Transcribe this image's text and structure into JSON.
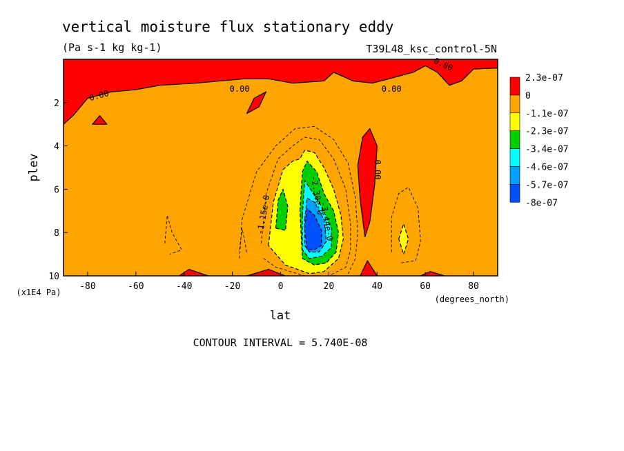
{
  "chart_data": {
    "type": "heatmap",
    "title": "vertical moisture flux stationary eddy",
    "subtitle": "(Pa s-1 kg kg-1)",
    "dataset_label": "T39L48_ksc_control-5N",
    "xlabel": "lat",
    "xunits": "(degrees_north)",
    "ylabel": "plev",
    "yunits": "(x1E4 Pa)",
    "xlim": [
      -90,
      90
    ],
    "ylim": [
      0,
      10
    ],
    "y_inverted": true,
    "xticks": [
      -80,
      -60,
      -40,
      -20,
      0,
      20,
      40,
      60,
      80
    ],
    "yticks": [
      2,
      4,
      6,
      8,
      10
    ],
    "footer": "CONTOUR INTERVAL = 5.740E-08",
    "colorbar": {
      "labels": [
        "2.3e-07",
        "0",
        "-1.1e-07",
        "-2.3e-07",
        "-3.4e-07",
        "-4.6e-07",
        "-5.7e-07",
        "-8e-07"
      ],
      "colors": [
        "#ff0000",
        "#ffa500",
        "#ffff00",
        "#00d000",
        "#00ffff",
        "#00a0ff",
        "#0050ff"
      ]
    },
    "background_color": "#ffa500",
    "regions": [
      {
        "level": "positive",
        "color": "#ff0000",
        "pts": [
          [
            -90,
            0
          ],
          [
            90,
            0
          ],
          [
            90,
            0.4
          ],
          [
            80,
            0.45
          ],
          [
            75,
            1.0
          ],
          [
            70,
            1.2
          ],
          [
            65,
            0.6
          ],
          [
            60,
            0.3
          ],
          [
            55,
            0.6
          ],
          [
            45,
            0.9
          ],
          [
            38,
            1.1
          ],
          [
            30,
            1.0
          ],
          [
            22,
            0.6
          ],
          [
            18,
            1.0
          ],
          [
            5,
            1.1
          ],
          [
            -5,
            0.9
          ],
          [
            -15,
            0.9
          ],
          [
            -25,
            1.0
          ],
          [
            -35,
            1.1
          ],
          [
            -50,
            1.2
          ],
          [
            -60,
            1.4
          ],
          [
            -70,
            1.5
          ],
          [
            -80,
            1.8
          ],
          [
            -86,
            2.6
          ],
          [
            -90,
            3.0
          ]
        ]
      },
      {
        "level": "positive",
        "color": "#ff0000",
        "pts": [
          [
            -14,
            2.5
          ],
          [
            -11,
            1.8
          ],
          [
            -6,
            1.5
          ],
          [
            -9,
            2.2
          ]
        ]
      },
      {
        "level": "positive",
        "color": "#ff0000",
        "pts": [
          [
            -78,
            3.0
          ],
          [
            -75,
            2.6
          ],
          [
            -72,
            3.0
          ]
        ]
      },
      {
        "level": "positive",
        "color": "#ff0000",
        "pts": [
          [
            32,
            4.9
          ],
          [
            34,
            3.6
          ],
          [
            37,
            3.2
          ],
          [
            40,
            4.0
          ],
          [
            39,
            5.8
          ],
          [
            37,
            7.5
          ],
          [
            35,
            8.2
          ],
          [
            33,
            6.5
          ]
        ]
      },
      {
        "level": "positive",
        "color": "#ff0000",
        "pts": [
          [
            33,
            10
          ],
          [
            36,
            9.3
          ],
          [
            40,
            10
          ]
        ]
      },
      {
        "level": "positive",
        "color": "#ff0000",
        "pts": [
          [
            -42,
            10
          ],
          [
            -38,
            9.7
          ],
          [
            -30,
            10
          ]
        ]
      },
      {
        "level": "positive",
        "color": "#ff0000",
        "pts": [
          [
            -14,
            10
          ],
          [
            -5,
            9.7
          ],
          [
            2,
            10
          ]
        ]
      },
      {
        "level": "positive",
        "color": "#ff0000",
        "pts": [
          [
            58,
            10
          ],
          [
            62,
            9.8
          ],
          [
            68,
            10
          ]
        ]
      },
      {
        "level": "-1.1e-07",
        "color": "#ffff00",
        "pts": [
          [
            -5,
            8.6
          ],
          [
            -3,
            6.6
          ],
          [
            1,
            5.1
          ],
          [
            5,
            4.7
          ],
          [
            8,
            4.6
          ],
          [
            10,
            4.2
          ],
          [
            14,
            4.3
          ],
          [
            18,
            5.0
          ],
          [
            22,
            6.0
          ],
          [
            25,
            7.2
          ],
          [
            26,
            8.3
          ],
          [
            24,
            9.2
          ],
          [
            18,
            9.8
          ],
          [
            12,
            9.9
          ],
          [
            7,
            9.7
          ],
          [
            2,
            9.5
          ]
        ]
      },
      {
        "level": "-1.1e-07",
        "color": "#ffff00",
        "pts": [
          [
            49,
            8.3
          ],
          [
            51,
            7.6
          ],
          [
            53,
            8.3
          ],
          [
            51,
            9.0
          ]
        ]
      },
      {
        "level": "-2.3e-07",
        "color": "#00d000",
        "pts": [
          [
            -2,
            7.8
          ],
          [
            -1,
            6.5
          ],
          [
            1,
            6.0
          ],
          [
            3,
            6.8
          ],
          [
            2,
            7.9
          ]
        ]
      },
      {
        "level": "-2.3e-07",
        "color": "#00d000",
        "pts": [
          [
            8,
            7.0
          ],
          [
            9,
            5.2
          ],
          [
            11,
            4.7
          ],
          [
            15,
            5.2
          ],
          [
            18,
            6.2
          ],
          [
            22,
            7.0
          ],
          [
            24,
            8.0
          ],
          [
            23,
            8.9
          ],
          [
            19,
            9.4
          ],
          [
            14,
            9.5
          ],
          [
            9,
            9.2
          ]
        ]
      },
      {
        "level": "-3.4e-07",
        "color": "#00ffff",
        "pts": [
          [
            9,
            7.2
          ],
          [
            10,
            5.6
          ],
          [
            13,
            6.1
          ],
          [
            17,
            6.8
          ],
          [
            21,
            7.8
          ],
          [
            21,
            8.7
          ],
          [
            17,
            9.1
          ],
          [
            12,
            9.2
          ],
          [
            9,
            8.8
          ]
        ]
      },
      {
        "level": "-4.6e-07",
        "color": "#00a0ff",
        "pts": [
          [
            10,
            7.4
          ],
          [
            11,
            6.4
          ],
          [
            14,
            6.6
          ],
          [
            18,
            7.4
          ],
          [
            19,
            8.4
          ],
          [
            16,
            8.9
          ],
          [
            12,
            8.9
          ],
          [
            10,
            8.6
          ]
        ]
      },
      {
        "level": "-5.7e-07",
        "color": "#0050ff",
        "pts": [
          [
            10,
            7.8
          ],
          [
            11,
            6.9
          ],
          [
            14,
            7.2
          ],
          [
            17,
            7.9
          ],
          [
            17,
            8.6
          ],
          [
            14,
            8.8
          ],
          [
            11,
            8.8
          ]
        ]
      }
    ],
    "dashed_contours": [
      [
        [
          -8,
          8.5
        ],
        [
          -6,
          6.2
        ],
        [
          -1,
          4.6
        ],
        [
          5,
          4.0
        ],
        [
          10,
          3.6
        ],
        [
          16,
          3.7
        ],
        [
          22,
          4.6
        ],
        [
          27,
          6.0
        ],
        [
          29,
          7.6
        ],
        [
          29,
          8.8
        ],
        [
          27,
          9.6
        ],
        [
          20,
          10.0
        ],
        [
          10,
          10.0
        ],
        [
          -2,
          9.6
        ],
        [
          -7,
          9.2
        ]
      ],
      [
        [
          -17,
          9.2
        ],
        [
          -16,
          7.4
        ],
        [
          -10,
          5.2
        ],
        [
          -2,
          4.0
        ],
        [
          6,
          3.2
        ],
        [
          14,
          3.1
        ],
        [
          22,
          3.7
        ],
        [
          28,
          4.8
        ],
        [
          31,
          6.4
        ],
        [
          32,
          8.0
        ],
        [
          31,
          9.2
        ],
        [
          28,
          9.9
        ]
      ],
      [
        [
          -48,
          8.5
        ],
        [
          -47,
          7.2
        ],
        [
          -45,
          8.0
        ],
        [
          -41,
          8.8
        ],
        [
          -46,
          9.0
        ]
      ],
      [
        [
          -17,
          8.8
        ],
        [
          -16,
          7.8
        ],
        [
          -15,
          8.3
        ],
        [
          -14,
          9.0
        ]
      ],
      [
        [
          46,
          8.9
        ],
        [
          46,
          7.3
        ],
        [
          49,
          6.2
        ],
        [
          53,
          5.9
        ],
        [
          57,
          6.9
        ],
        [
          58,
          8.4
        ],
        [
          56,
          9.3
        ],
        [
          50,
          9.4
        ]
      ]
    ],
    "contour_labels": [
      {
        "text": "0.00",
        "x": -75,
        "y": 1.8,
        "angle": -15
      },
      {
        "text": "0.00",
        "x": -17,
        "y": 1.5,
        "angle": 0
      },
      {
        "text": "0.00",
        "x": 46,
        "y": 1.5,
        "angle": 0
      },
      {
        "text": "0.00",
        "x": 67,
        "y": 0.35,
        "angle": 25
      },
      {
        "text": "0.00",
        "x": 39,
        "y": 5.1,
        "angle": 90
      },
      {
        "text": "-1.15e-0",
        "x": -6,
        "y": 7.2,
        "angle": -80
      },
      {
        "text": "-2.30e-0",
        "x": 14,
        "y": 6.3,
        "angle": 80
      },
      {
        "text": "-3.44e-0",
        "x": 18,
        "y": 7.5,
        "angle": 80
      }
    ]
  }
}
